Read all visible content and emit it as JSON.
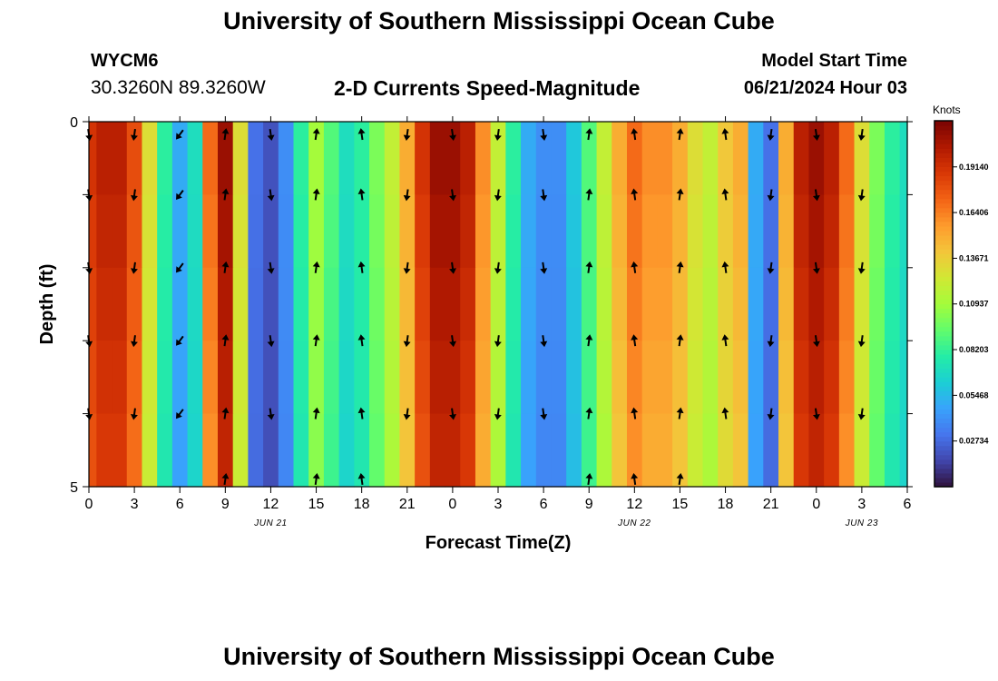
{
  "header": {
    "title": "University of Southern Mississippi Ocean Cube",
    "station_id": "WYCM6",
    "coordinates": "30.3260N  89.3260W",
    "subtitle": "2-D Currents Speed-Magnitude",
    "model_start_label": "Model Start Time",
    "model_start_value": "06/21/2024 Hour 03"
  },
  "footer": {
    "title": "University of Southern Mississippi Ocean Cube"
  },
  "chart_data": {
    "type": "heatmap",
    "title": "2-D Currents Speed-Magnitude",
    "xlabel": "Forecast Time(Z)",
    "ylabel": "Depth (ft)",
    "y_axis": {
      "range": [
        0,
        5
      ],
      "ticks": [
        "0",
        "5"
      ],
      "inverted": true
    },
    "x_axis": {
      "range_hours": [
        0,
        54
      ],
      "tick_hours": [
        0,
        3,
        6,
        9,
        12,
        15,
        18,
        21,
        24,
        27,
        30,
        33,
        36,
        39,
        42,
        45,
        48,
        51,
        54
      ],
      "tick_labels": [
        "0",
        "3",
        "6",
        "9",
        "12",
        "15",
        "18",
        "21",
        "0",
        "3",
        "6",
        "9",
        "12",
        "15",
        "18",
        "21",
        "0",
        "3",
        "6"
      ],
      "date_labels": [
        {
          "label": "JUN 21",
          "hour": 12
        },
        {
          "label": "JUN 22",
          "hour": 36
        },
        {
          "label": "JUN 23",
          "hour": 51
        }
      ]
    },
    "colorbar": {
      "label": "Knots",
      "range": [
        0.0,
        0.219
      ],
      "tick_values": [
        0.02734,
        0.05468,
        0.08203,
        0.10937,
        0.13671,
        0.16406,
        0.1914
      ],
      "tick_labels": [
        "0.02734",
        "0.05468",
        "0.08203",
        "0.10937",
        "0.13671",
        "0.16406",
        "0.19140"
      ],
      "colormap": [
        "#30123b",
        "#4145ab",
        "#4675ed",
        "#39a2fc",
        "#1bcfd4",
        "#24eca6",
        "#61fc6c",
        "#a4fc3b",
        "#d1e834",
        "#f3c63a",
        "#fe9b2d",
        "#f36315",
        "#d93806",
        "#b11901",
        "#7a0403"
      ]
    },
    "speed_profile_hours": [
      0,
      1,
      2,
      3,
      4,
      5,
      6,
      7,
      8,
      9,
      10,
      11,
      12,
      13,
      14,
      15,
      16,
      17,
      18,
      19,
      20,
      21,
      22,
      23,
      24,
      25,
      26,
      27,
      28,
      29,
      30,
      31,
      32,
      33,
      34,
      35,
      36,
      37,
      38,
      39,
      40,
      41,
      42,
      43,
      44,
      45,
      46,
      47,
      48,
      49,
      50,
      51,
      52,
      53,
      54
    ],
    "speed_profile_knots": [
      0.19,
      0.2,
      0.2,
      0.18,
      0.13,
      0.08,
      0.05,
      0.07,
      0.17,
      0.21,
      0.13,
      0.03,
      0.02,
      0.04,
      0.08,
      0.11,
      0.09,
      0.07,
      0.08,
      0.1,
      0.12,
      0.15,
      0.19,
      0.21,
      0.21,
      0.2,
      0.16,
      0.12,
      0.08,
      0.05,
      0.04,
      0.04,
      0.06,
      0.09,
      0.12,
      0.15,
      0.17,
      0.16,
      0.16,
      0.15,
      0.13,
      0.12,
      0.14,
      0.15,
      0.05,
      0.03,
      0.15,
      0.2,
      0.21,
      0.2,
      0.17,
      0.13,
      0.1,
      0.08,
      0.07
    ],
    "depth_levels_ft": [
      0,
      1,
      2,
      3,
      4,
      5
    ],
    "direction_samples": {
      "hours": [
        0,
        3,
        6,
        9,
        12,
        15,
        18,
        21,
        24,
        27,
        30,
        33,
        36,
        39,
        42,
        45,
        48,
        51
      ],
      "directions": [
        "s",
        "s",
        "sw",
        "n",
        "s",
        "n",
        "n",
        "s",
        "s",
        "s",
        "s",
        "n",
        "n",
        "n",
        "n",
        "s",
        "s",
        "s"
      ]
    }
  }
}
